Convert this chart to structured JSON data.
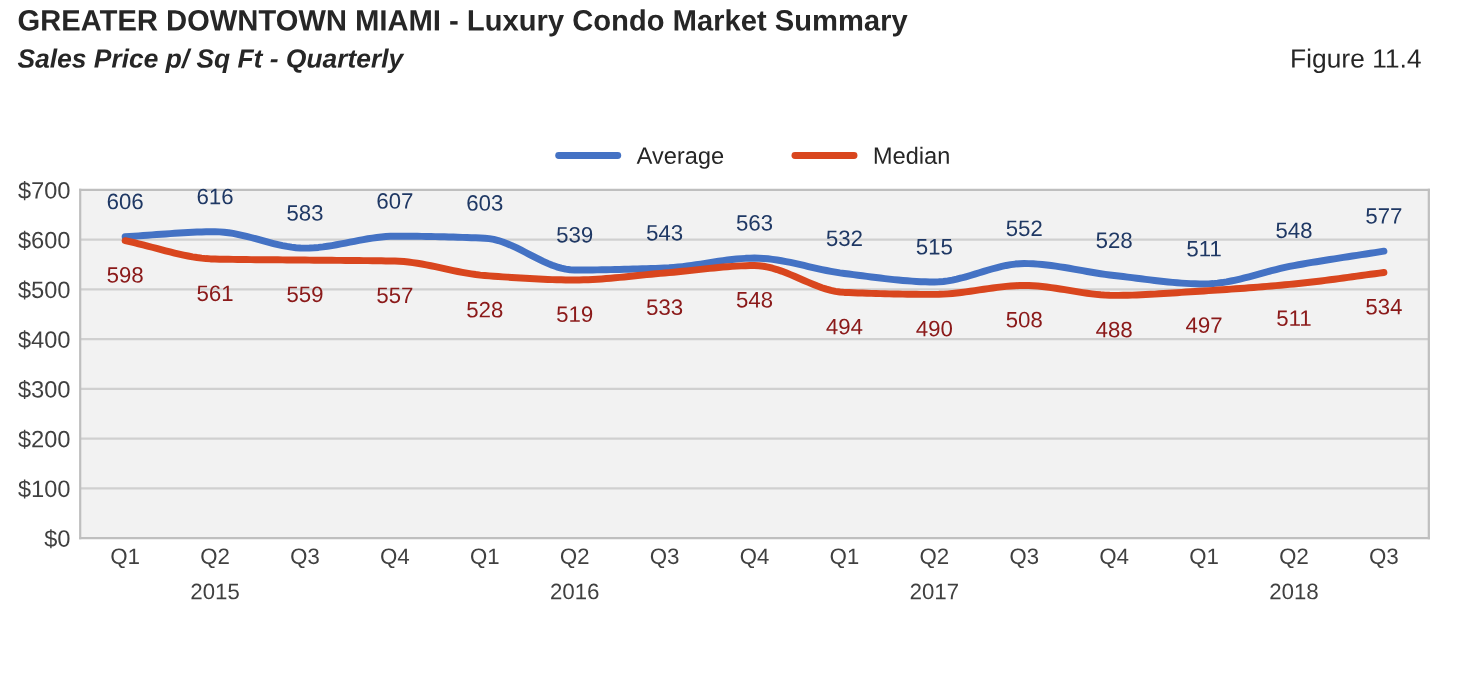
{
  "chart_data": {
    "type": "line",
    "title": "GREATER DOWNTOWN MIAMI - Luxury Condo Market Summary",
    "subtitle": "Sales Price p/ Sq Ft - Quarterly",
    "annotations": [
      "Figure 11.4"
    ],
    "categories": [
      "Q1",
      "Q2\n2015",
      "Q3",
      "Q4",
      "Q1",
      "Q2\n2016",
      "Q3",
      "Q4",
      "Q1",
      "Q2\n2017",
      "Q3",
      "Q4",
      "Q1",
      "Q2\n2018",
      "Q3"
    ],
    "series": [
      {
        "name": "Average",
        "color": "#4472c4",
        "values": [
          606,
          616,
          583,
          607,
          603,
          539,
          543,
          563,
          532,
          515,
          552,
          528,
          511,
          548,
          577
        ]
      },
      {
        "name": "Median",
        "color": "#d9461e",
        "values": [
          598,
          561,
          559,
          557,
          528,
          519,
          533,
          548,
          494,
          490,
          508,
          488,
          497,
          511,
          534
        ]
      }
    ],
    "ylim": [
      0,
      700
    ],
    "yticks": [
      {
        "value": 0,
        "label": "$0"
      },
      {
        "value": 100,
        "label": "$100"
      },
      {
        "value": 200,
        "label": "$200"
      },
      {
        "value": 300,
        "label": "$300"
      },
      {
        "value": 400,
        "label": "$400"
      },
      {
        "value": 500,
        "label": "$500"
      },
      {
        "value": 600,
        "label": "$600"
      },
      {
        "value": 700,
        "label": "$700"
      }
    ],
    "grid": "y",
    "legend": "top",
    "data_labels": true,
    "marker": "none",
    "line_style": "solid"
  }
}
